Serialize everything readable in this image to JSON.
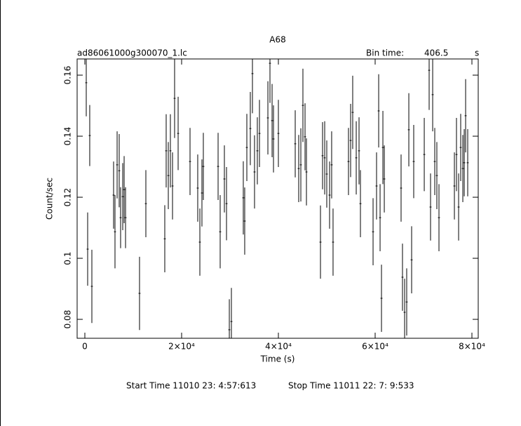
{
  "chart_data": {
    "type": "errorbar",
    "title": "A68",
    "subtitle": "ad86061000g300070_1.lc",
    "bin_time_label": "Bin time:",
    "bin_time": 406.5,
    "bin_time_unit": "s",
    "x_label": "Time (s)",
    "y_label": "Count/sec",
    "start_time": "Start Time 11010 23: 4:57:613",
    "stop_time": "Stop Time 11011 22: 7: 9:533",
    "color": "#000000",
    "xlim": [
      -1594,
      81304
    ],
    "ylim": [
      0.0738,
      0.1653
    ],
    "xticks": [
      0,
      {
        "value": 20000,
        "label": "2×10⁴"
      },
      {
        "value": 40000,
        "label": "4×10⁴"
      },
      {
        "value": 60000,
        "label": "6×10⁴"
      },
      {
        "value": 80000,
        "label": "8×10⁴"
      }
    ],
    "yticks": [
      0.08,
      0.1,
      0.12,
      0.14,
      0.16
    ],
    "x": [
      290,
      580,
      1010,
      1450,
      5940,
      6230,
      6670,
      7100,
      7390,
      7830,
      8120,
      8410,
      11300,
      12610,
      16520,
      16810,
      17250,
      17680,
      18120,
      18550,
      19280,
      21740,
      23330,
      23770,
      24200,
      24490,
      27540,
      27970,
      28840,
      29280,
      29860,
      30290,
      32750,
      33040,
      33480,
      34200,
      34640,
      35070,
      35650,
      36090,
      37830,
      38260,
      38700,
      38990,
      40000,
      43480,
      44200,
      44640,
      45070,
      45510,
      45800,
      48700,
      49130,
      49570,
      50000,
      50580,
      51010,
      51300,
      54490,
      54930,
      55360,
      56090,
      56670,
      56960,
      59570,
      60290,
      60730,
      61020,
      61310,
      61600,
      61890,
      65360,
      65650,
      66090,
      66520,
      66960,
      67540,
      67970,
      70150,
      71160,
      71450,
      71890,
      72320,
      72750,
      73190,
      76380,
      76810,
      77250,
      77680,
      78120,
      78410,
      78700,
      79130
    ],
    "values": [
      0.1575,
      0.103,
      0.1402,
      0.0908,
      0.1207,
      0.1087,
      0.1306,
      0.1287,
      0.1133,
      0.1202,
      0.1225,
      0.1133,
      0.0885,
      0.1179,
      0.1064,
      0.1352,
      0.1271,
      0.1352,
      0.1237,
      0.1524,
      0.1409,
      0.1317,
      0.123,
      0.1053,
      0.1214,
      0.1301,
      0.1301,
      0.1087,
      0.126,
      0.1179,
      0.0766,
      0.0793,
      0.1198,
      0.1122,
      0.1363,
      0.1425,
      0.1605,
      0.1283,
      0.1352,
      0.1409,
      0.146,
      0.1639,
      0.1451,
      0.1391,
      0.1409,
      0.1375,
      0.1294,
      0.1306,
      0.1501,
      0.1398,
      0.1283,
      0.1053,
      0.1336,
      0.1329,
      0.1276,
      0.1207,
      0.1306,
      0.1053,
      0.1317,
      0.1386,
      0.1478,
      0.1329,
      0.1352,
      0.1179,
      0.1087,
      0.1237,
      0.1483,
      0.1133,
      0.0869,
      0.1363,
      0.126,
      0.123,
      0.0938,
      0.0823,
      0.0857,
      0.1421,
      0.0995,
      0.1317,
      0.134,
      0.1616,
      0.1168,
      0.1536,
      0.1317,
      0.1271,
      0.1133,
      0.1237,
      0.134,
      0.1168,
      0.1363,
      0.1294,
      0.1313,
      0.1467,
      0.1313
    ],
    "errors": [
      0.011,
      0.012,
      0.01,
      0.012,
      0.011,
      0.012,
      0.011,
      0.012,
      0.01,
      0.011,
      0.011,
      0.01,
      0.012,
      0.011,
      0.011,
      0.012,
      0.011,
      0.012,
      0.011,
      0.013,
      0.012,
      0.011,
      0.011,
      0.011,
      0.011,
      0.011,
      0.011,
      0.012,
      0.011,
      0.012,
      0.01,
      0.011,
      0.012,
      0.011,
      0.011,
      0.012,
      0.013,
      0.012,
      0.011,
      0.011,
      0.012,
      0.013,
      0.012,
      0.011,
      0.011,
      0.011,
      0.011,
      0.012,
      0.012,
      0.011,
      0.011,
      0.012,
      0.011,
      0.012,
      0.011,
      0.011,
      0.011,
      0.011,
      0.011,
      0.012,
      0.012,
      0.012,
      0.011,
      0.011,
      0.011,
      0.011,
      0.012,
      0.011,
      0.011,
      0.012,
      0.011,
      0.011,
      0.011,
      0.011,
      0.011,
      0.012,
      0.011,
      0.012,
      0.012,
      0.013,
      0.011,
      0.012,
      0.011,
      0.011,
      0.011,
      0.011,
      0.012,
      0.011,
      0.011,
      0.011,
      0.011,
      0.012,
      0.011
    ]
  }
}
